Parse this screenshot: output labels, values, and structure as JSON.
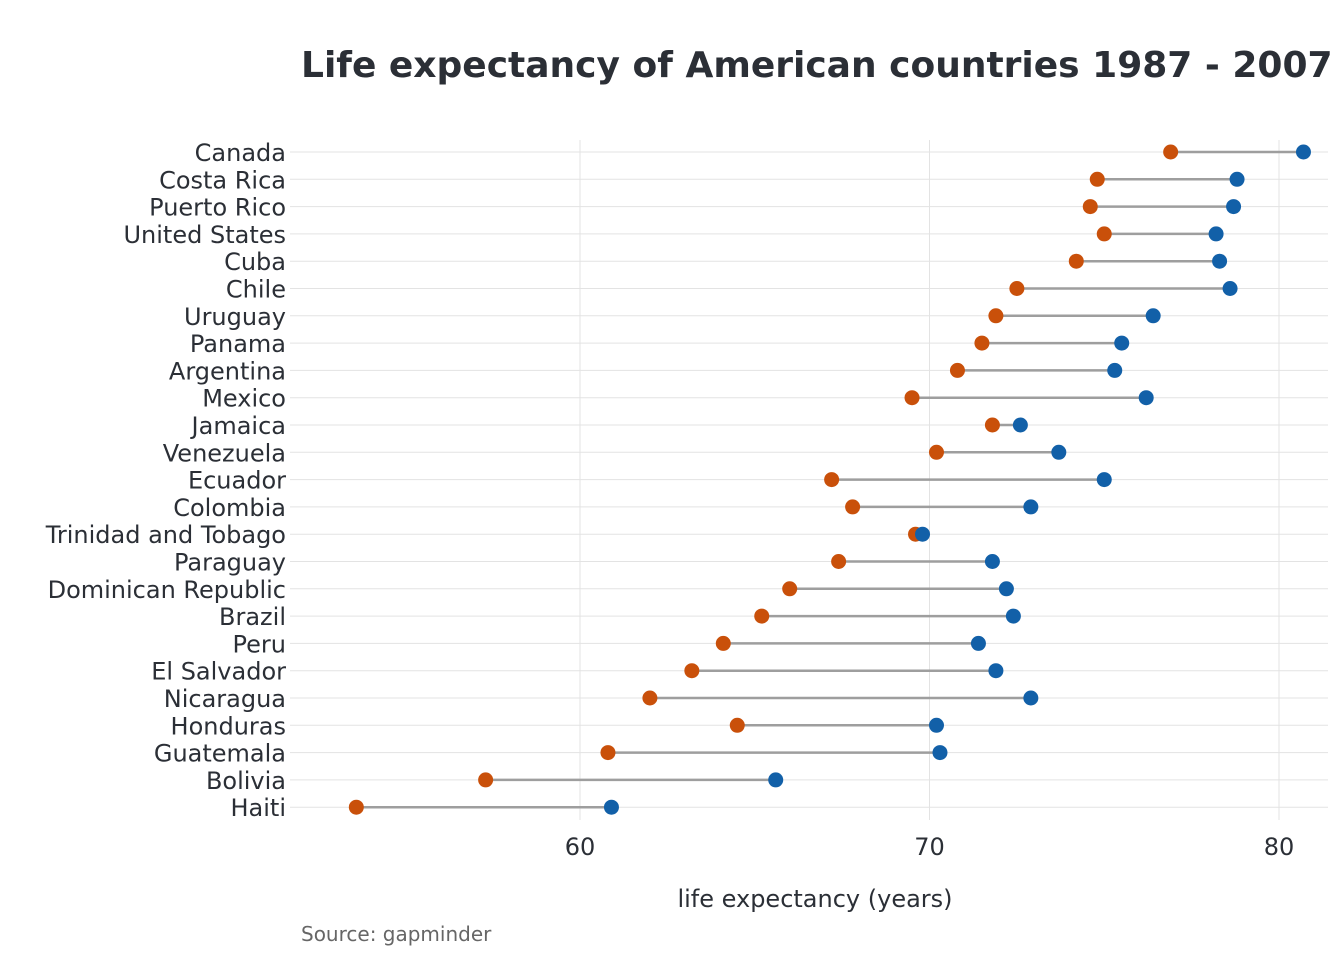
{
  "chart_data": {
    "type": "dumbbell",
    "title": "Life expectancy of American countries 1987 - 2007",
    "xlabel": "life expectancy (years)",
    "ylabel": "",
    "caption": "Source: gapminder",
    "xlim": [
      52,
      81.5
    ],
    "xticks": [
      60,
      70,
      80
    ],
    "grid": true,
    "legend": "none",
    "colors": {
      "start": "#c9500a",
      "end": "#1260a8",
      "segment": "#9e9e9e"
    },
    "categories": [
      "Canada",
      "Costa Rica",
      "Puerto Rico",
      "United States",
      "Cuba",
      "Chile",
      "Uruguay",
      "Panama",
      "Argentina",
      "Mexico",
      "Jamaica",
      "Venezuela",
      "Ecuador",
      "Colombia",
      "Trinidad and Tobago",
      "Paraguay",
      "Dominican Republic",
      "Brazil",
      "Peru",
      "El Salvador",
      "Nicaragua",
      "Honduras",
      "Guatemala",
      "Bolivia",
      "Haiti"
    ],
    "series": [
      {
        "values": [
          76.9,
          74.8,
          74.6,
          75.0,
          74.2,
          72.5,
          71.9,
          71.5,
          70.8,
          69.5,
          71.8,
          70.2,
          67.2,
          67.8,
          69.6,
          67.4,
          66.0,
          65.2,
          64.1,
          63.2,
          62.0,
          64.5,
          60.8,
          57.3,
          53.6
        ]
      },
      {
        "values": [
          80.7,
          78.8,
          78.7,
          78.2,
          78.3,
          78.6,
          76.4,
          75.5,
          75.3,
          76.2,
          72.6,
          73.7,
          75.0,
          72.9,
          69.8,
          71.8,
          72.2,
          72.4,
          71.4,
          71.9,
          72.9,
          70.2,
          70.3,
          65.6,
          60.9
        ]
      }
    ]
  }
}
